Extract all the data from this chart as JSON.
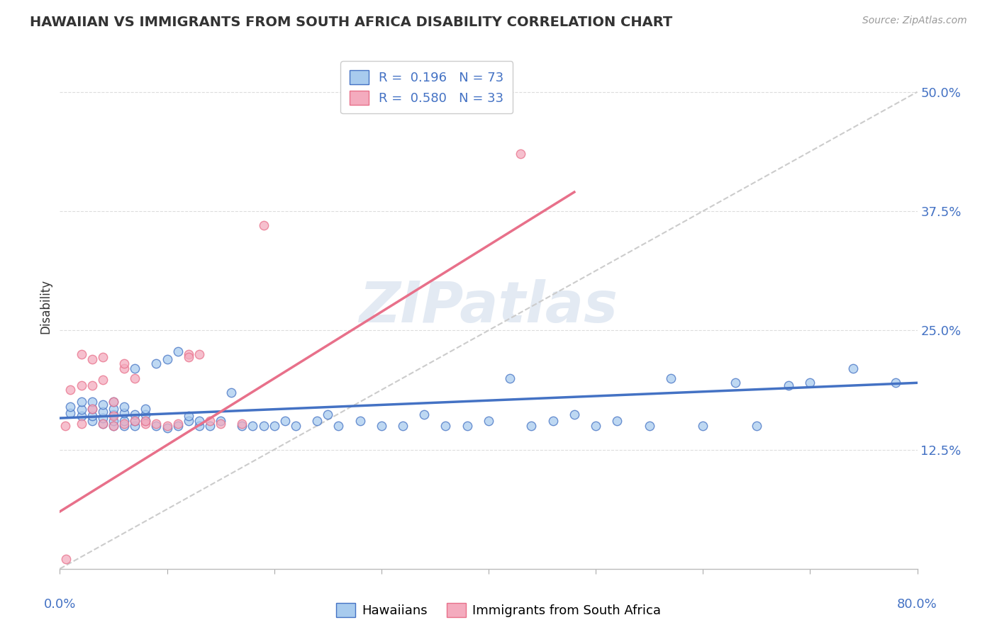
{
  "title": "HAWAIIAN VS IMMIGRANTS FROM SOUTH AFRICA DISABILITY CORRELATION CHART",
  "source": "Source: ZipAtlas.com",
  "ylabel": "Disability",
  "xlim": [
    0.0,
    0.8
  ],
  "ylim": [
    0.0,
    0.55
  ],
  "xticks": [
    0.0,
    0.1,
    0.2,
    0.3,
    0.4,
    0.5,
    0.6,
    0.7,
    0.8
  ],
  "yticks_right": [
    0.125,
    0.25,
    0.375,
    0.5
  ],
  "ytick_right_labels": [
    "12.5%",
    "25.0%",
    "37.5%",
    "50.0%"
  ],
  "series1_color": "#A8CBEE",
  "series2_color": "#F4ABBE",
  "line1_color": "#4472C4",
  "line2_color": "#E8708A",
  "R1": 0.196,
  "N1": 73,
  "R2": 0.58,
  "N2": 33,
  "legend_label1": "Hawaiians",
  "legend_label2": "Immigrants from South Africa",
  "hawaiians_x": [
    0.01,
    0.01,
    0.02,
    0.02,
    0.02,
    0.03,
    0.03,
    0.03,
    0.03,
    0.04,
    0.04,
    0.04,
    0.04,
    0.05,
    0.05,
    0.05,
    0.05,
    0.05,
    0.06,
    0.06,
    0.06,
    0.06,
    0.07,
    0.07,
    0.07,
    0.07,
    0.08,
    0.08,
    0.08,
    0.09,
    0.09,
    0.1,
    0.1,
    0.11,
    0.11,
    0.12,
    0.12,
    0.13,
    0.13,
    0.14,
    0.15,
    0.16,
    0.17,
    0.18,
    0.19,
    0.2,
    0.21,
    0.22,
    0.24,
    0.25,
    0.26,
    0.28,
    0.3,
    0.32,
    0.34,
    0.36,
    0.38,
    0.4,
    0.42,
    0.44,
    0.46,
    0.48,
    0.5,
    0.52,
    0.55,
    0.57,
    0.6,
    0.63,
    0.65,
    0.68,
    0.7,
    0.74,
    0.78
  ],
  "hawaiians_y": [
    0.163,
    0.17,
    0.16,
    0.167,
    0.175,
    0.155,
    0.16,
    0.168,
    0.175,
    0.152,
    0.158,
    0.165,
    0.172,
    0.15,
    0.155,
    0.162,
    0.168,
    0.175,
    0.15,
    0.155,
    0.163,
    0.17,
    0.15,
    0.155,
    0.162,
    0.21,
    0.155,
    0.162,
    0.168,
    0.15,
    0.215,
    0.148,
    0.22,
    0.15,
    0.228,
    0.155,
    0.16,
    0.15,
    0.155,
    0.15,
    0.155,
    0.185,
    0.15,
    0.15,
    0.15,
    0.15,
    0.155,
    0.15,
    0.155,
    0.162,
    0.15,
    0.155,
    0.15,
    0.15,
    0.162,
    0.15,
    0.15,
    0.155,
    0.2,
    0.15,
    0.155,
    0.162,
    0.15,
    0.155,
    0.15,
    0.2,
    0.15,
    0.195,
    0.15,
    0.192,
    0.195,
    0.21,
    0.195
  ],
  "immigrants_x": [
    0.005,
    0.01,
    0.02,
    0.02,
    0.02,
    0.03,
    0.03,
    0.03,
    0.04,
    0.04,
    0.04,
    0.05,
    0.05,
    0.05,
    0.06,
    0.06,
    0.06,
    0.07,
    0.07,
    0.08,
    0.08,
    0.09,
    0.1,
    0.11,
    0.12,
    0.12,
    0.13,
    0.14,
    0.15,
    0.17,
    0.19,
    0.43,
    0.006
  ],
  "immigrants_y": [
    0.15,
    0.188,
    0.152,
    0.192,
    0.225,
    0.168,
    0.192,
    0.22,
    0.152,
    0.198,
    0.222,
    0.15,
    0.16,
    0.175,
    0.152,
    0.21,
    0.215,
    0.2,
    0.155,
    0.152,
    0.155,
    0.152,
    0.15,
    0.152,
    0.225,
    0.222,
    0.225,
    0.155,
    0.152,
    0.152,
    0.36,
    0.435,
    0.01
  ],
  "trendline1_x": [
    0.0,
    0.8
  ],
  "trendline1_y": [
    0.158,
    0.195
  ],
  "trendline2_x": [
    0.0,
    0.48
  ],
  "trendline2_y": [
    0.06,
    0.395
  ],
  "dash_line_x": [
    0.0,
    0.8
  ],
  "dash_line_y": [
    0.0,
    0.5
  ]
}
